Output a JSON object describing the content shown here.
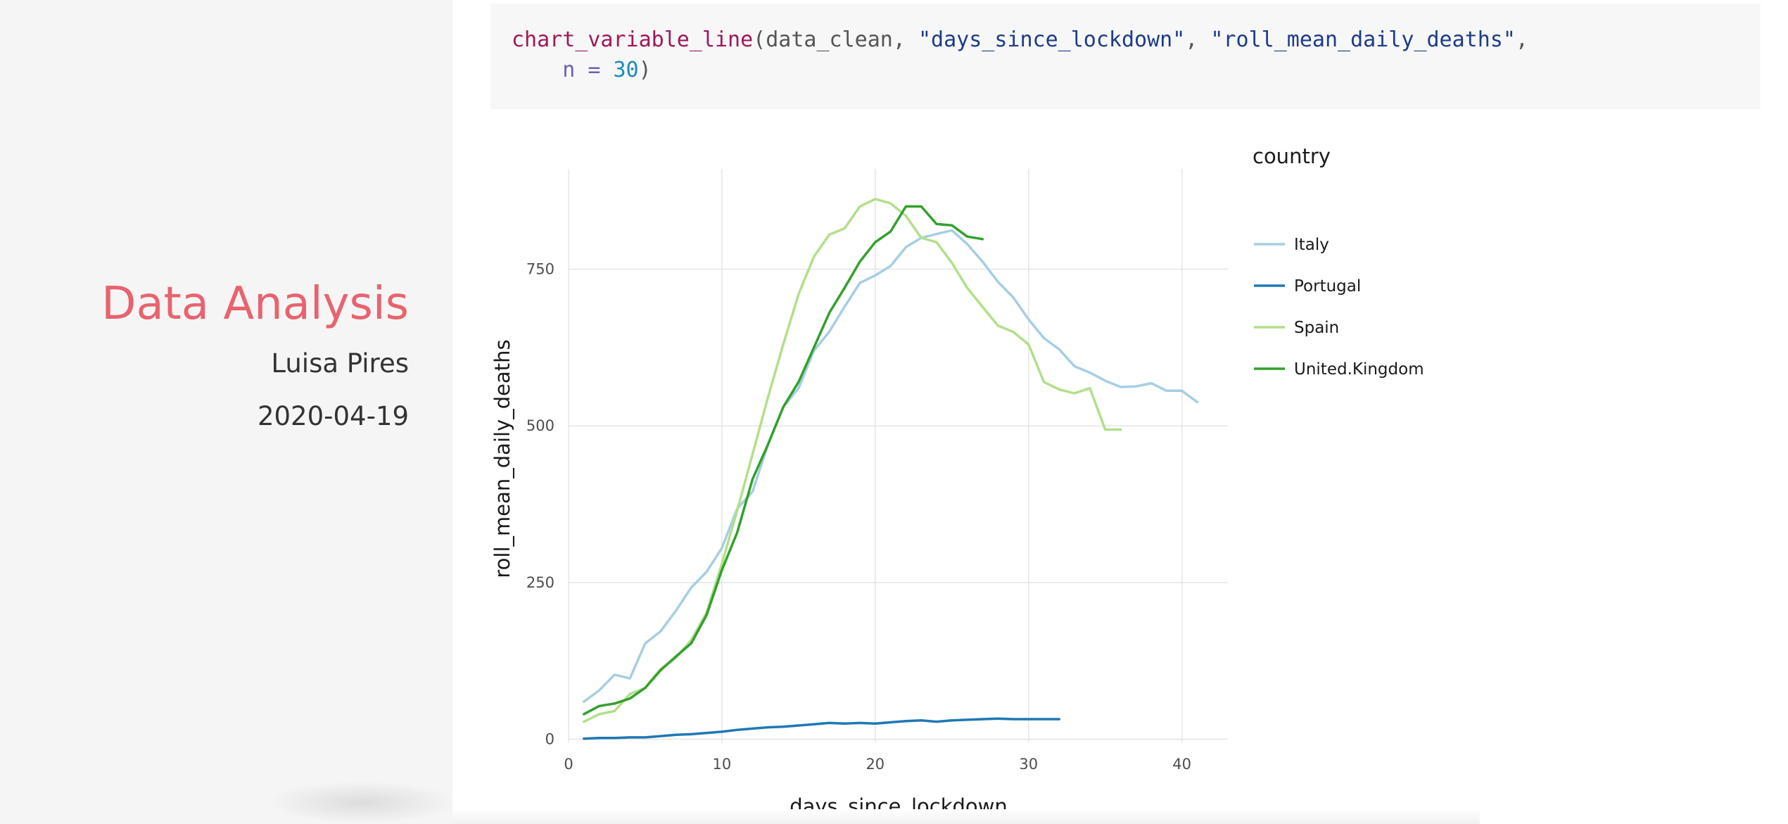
{
  "sidebar": {
    "title": "Data Analysis",
    "author": "Luisa Pires",
    "date": "2020-04-19"
  },
  "code": {
    "fn": "chart_variable_line",
    "open_paren": "(",
    "arg1": "data_clean",
    "sep1": ", ",
    "arg2": "\"days_since_lockdown\"",
    "sep2": ", ",
    "arg3": "\"roll_mean_daily_deaths\"",
    "trail": ",",
    "indent": "    ",
    "arg4_name": "n",
    "arg4_eq": " = ",
    "arg4_value": "30",
    "close_paren": ")"
  },
  "colors": {
    "Italy": "#a6cee3",
    "Portugal": "#1f78b4",
    "Spain": "#b2df8a",
    "United.Kingdom": "#33a02c",
    "title": "#e8636f"
  },
  "chart_data": {
    "type": "line",
    "xlabel": "days_since_lockdown",
    "ylabel": "roll_mean_daily_deaths",
    "xlim": [
      0,
      43
    ],
    "ylim": [
      -5,
      910
    ],
    "xticks": [
      0,
      10,
      20,
      30,
      40
    ],
    "yticks": [
      0,
      250,
      500,
      750
    ],
    "grid": true,
    "legend": {
      "title": "country",
      "position": "right"
    },
    "series": [
      {
        "name": "Italy",
        "x": [
          1,
          2,
          3,
          4,
          5,
          6,
          7,
          8,
          9,
          10,
          11,
          12,
          13,
          14,
          15,
          16,
          17,
          18,
          19,
          20,
          21,
          22,
          23,
          24,
          25,
          26,
          27,
          28,
          29,
          30,
          31,
          32,
          33,
          34,
          35,
          36,
          37,
          38,
          39,
          40,
          41
        ],
        "y": [
          60,
          78,
          103,
          97,
          153,
          172,
          205,
          242,
          267,
          305,
          368,
          395,
          470,
          530,
          560,
          620,
          650,
          690,
          728,
          740,
          755,
          785,
          800,
          806,
          812,
          790,
          762,
          730,
          705,
          670,
          640,
          622,
          595,
          585,
          572,
          562,
          563,
          568,
          556,
          556,
          538
        ]
      },
      {
        "name": "Portugal",
        "x": [
          1,
          2,
          3,
          4,
          5,
          6,
          7,
          8,
          9,
          10,
          11,
          12,
          13,
          14,
          15,
          16,
          17,
          18,
          19,
          20,
          21,
          22,
          23,
          24,
          25,
          26,
          27,
          28,
          29,
          30,
          31,
          32
        ],
        "y": [
          1,
          2,
          2,
          3,
          3,
          5,
          7,
          8,
          10,
          12,
          15,
          17,
          19,
          20,
          22,
          24,
          26,
          25,
          26,
          25,
          27,
          29,
          30,
          28,
          30,
          31,
          32,
          33,
          32,
          32,
          32,
          32
        ]
      },
      {
        "name": "Spain",
        "x": [
          1,
          2,
          3,
          4,
          5,
          6,
          7,
          8,
          9,
          10,
          11,
          12,
          13,
          14,
          15,
          16,
          17,
          18,
          19,
          20,
          21,
          22,
          23,
          24,
          25,
          26,
          27,
          28,
          29,
          30,
          31,
          32,
          33,
          34,
          35,
          36
        ],
        "y": [
          28,
          40,
          45,
          72,
          82,
          112,
          130,
          158,
          202,
          280,
          365,
          455,
          545,
          630,
          710,
          770,
          805,
          815,
          850,
          862,
          855,
          835,
          800,
          793,
          760,
          720,
          690,
          660,
          650,
          630,
          570,
          558,
          552,
          560,
          494,
          494
        ]
      },
      {
        "name": "United.Kingdom",
        "x": [
          1,
          2,
          3,
          4,
          5,
          6,
          7,
          8,
          9,
          10,
          11,
          12,
          13,
          14,
          15,
          16,
          17,
          18,
          19,
          20,
          21,
          22,
          23,
          24,
          25,
          26,
          27
        ],
        "y": [
          40,
          53,
          57,
          65,
          82,
          110,
          132,
          153,
          198,
          270,
          330,
          415,
          470,
          530,
          570,
          625,
          680,
          720,
          762,
          793,
          810,
          850,
          850,
          822,
          820,
          802,
          798
        ]
      }
    ]
  }
}
